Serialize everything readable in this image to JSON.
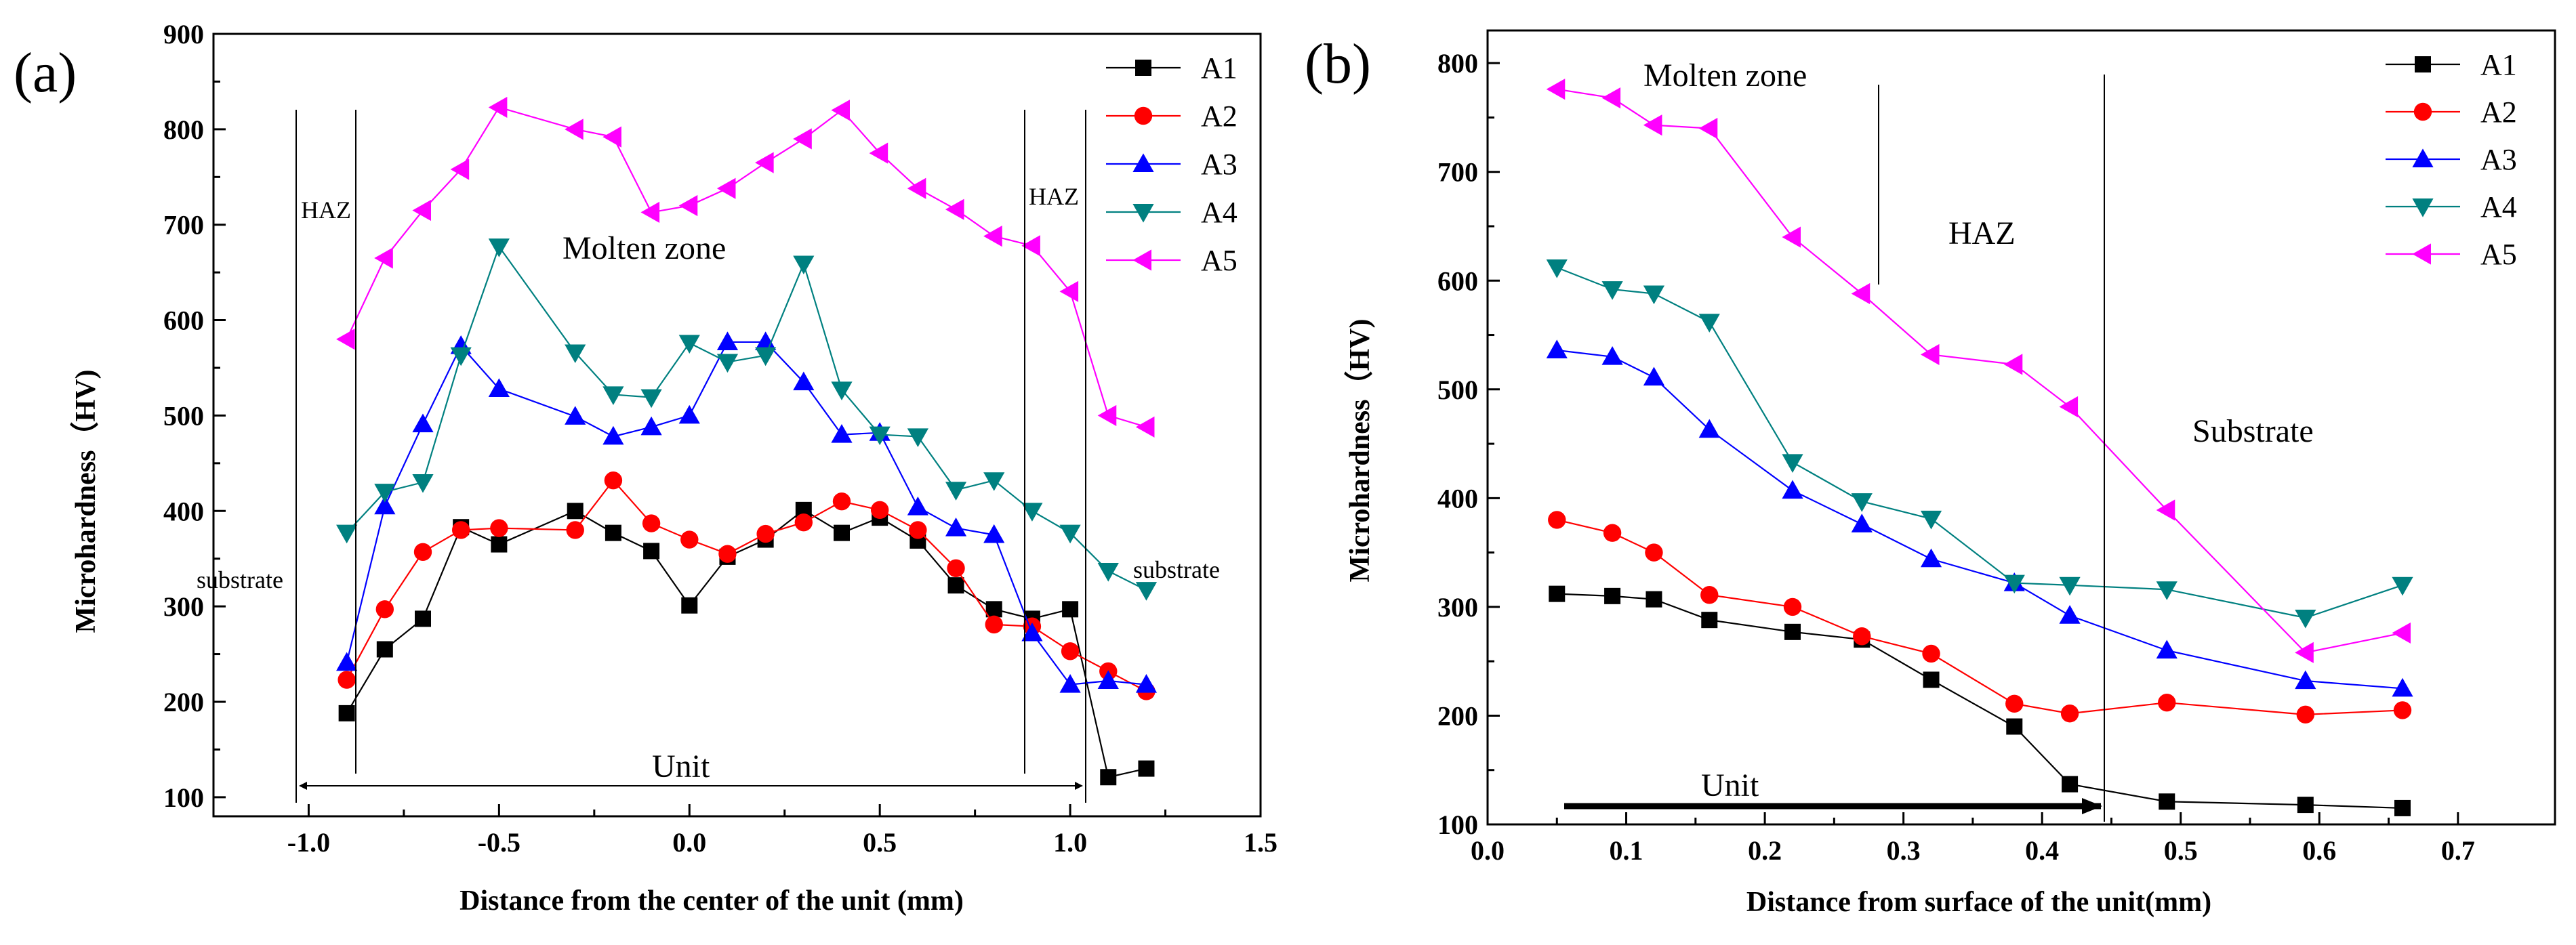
{
  "chart_data": [
    {
      "type": "line",
      "panel_label": "(a)",
      "xlabel": "Distance from the center of the unit (mm)",
      "ylabel": "Microhardness（HV)",
      "xlim": [
        -1.25,
        1.5
      ],
      "ylim": [
        80,
        900
      ],
      "xticks": [
        -1.0,
        -0.5,
        0.0,
        0.5,
        1.0,
        1.5
      ],
      "xtick_labels": [
        "-1.0",
        "-0.5",
        "0.0",
        "0.5",
        "1.0",
        "1.5"
      ],
      "yticks": [
        100,
        200,
        300,
        400,
        500,
        600,
        700,
        800,
        900
      ],
      "ytick_labels": [
        "100",
        "200",
        "300",
        "400",
        "500",
        "600",
        "700",
        "800",
        "900"
      ],
      "series": [
        {
          "name": "A1",
          "color": "#000000",
          "marker": "square",
          "x": [
            -0.9,
            -0.8,
            -0.7,
            -0.6,
            -0.5,
            -0.3,
            -0.2,
            -0.1,
            0.0,
            0.1,
            0.2,
            0.3,
            0.4,
            0.5,
            0.6,
            0.7,
            0.8,
            0.9,
            1.0,
            1.1,
            1.2
          ],
          "y": [
            188,
            255,
            287,
            383,
            365,
            400,
            377,
            358,
            301,
            352,
            370,
            401,
            377,
            393,
            369,
            322,
            297,
            287,
            297,
            121,
            130
          ]
        },
        {
          "name": "A2",
          "color": "#ff0000",
          "marker": "circle",
          "x": [
            -0.9,
            -0.8,
            -0.7,
            -0.6,
            -0.5,
            -0.3,
            -0.2,
            -0.1,
            0.0,
            0.1,
            0.2,
            0.3,
            0.4,
            0.5,
            0.6,
            0.7,
            0.8,
            0.9,
            1.0,
            1.1,
            1.2
          ],
          "y": [
            223,
            297,
            357,
            380,
            382,
            380,
            432,
            387,
            370,
            355,
            376,
            388,
            410,
            401,
            380,
            340,
            281,
            279,
            253,
            232,
            211
          ]
        },
        {
          "name": "A3",
          "color": "#0000ff",
          "marker": "triangle-up",
          "x": [
            -0.9,
            -0.8,
            -0.7,
            -0.6,
            -0.5,
            -0.3,
            -0.2,
            -0.1,
            0.0,
            0.1,
            0.2,
            0.3,
            0.4,
            0.5,
            0.6,
            0.7,
            0.8,
            0.9,
            1.0,
            1.1,
            1.2
          ],
          "y": [
            241,
            405,
            491,
            573,
            528,
            499,
            478,
            488,
            500,
            577,
            577,
            535,
            480,
            482,
            404,
            382,
            375,
            272,
            218,
            222,
            218
          ]
        },
        {
          "name": "A4",
          "color": "#008080",
          "marker": "triangle-down",
          "x": [
            -0.9,
            -0.8,
            -0.7,
            -0.6,
            -0.5,
            -0.3,
            -0.2,
            -0.1,
            0.0,
            0.1,
            0.2,
            0.3,
            0.4,
            0.5,
            0.6,
            0.7,
            0.8,
            0.9,
            1.0,
            1.1,
            1.2
          ],
          "y": [
            377,
            420,
            430,
            563,
            677,
            566,
            522,
            519,
            576,
            556,
            563,
            659,
            527,
            480,
            478,
            422,
            432,
            400,
            377,
            337,
            317
          ]
        },
        {
          "name": "A5",
          "color": "#ff00ff",
          "marker": "triangle-left",
          "x": [
            -0.9,
            -0.8,
            -0.7,
            -0.6,
            -0.5,
            -0.3,
            -0.2,
            -0.1,
            0.0,
            0.1,
            0.2,
            0.3,
            0.4,
            0.5,
            0.6,
            0.7,
            0.8,
            0.9,
            1.0,
            1.1,
            1.2
          ],
          "y": [
            580,
            665,
            715,
            758,
            823,
            800,
            792,
            713,
            720,
            738,
            765,
            790,
            820,
            775,
            738,
            716,
            688,
            678,
            630,
            500,
            488
          ]
        }
      ],
      "annotations": {
        "haz_left": "HAZ",
        "haz_right": "HAZ",
        "molten_zone": "Molten zone",
        "substrate_left": "substrate",
        "substrate_right": "substrate",
        "unit": "Unit"
      },
      "legend_position": "top-right"
    },
    {
      "type": "line",
      "panel_label": "(b)",
      "xlabel": "Distance from surface of the unit(mm)",
      "ylabel": "Microhardness（HV)",
      "xlim": [
        0.0,
        0.77
      ],
      "ylim": [
        100,
        830
      ],
      "xticks": [
        0.0,
        0.1,
        0.2,
        0.3,
        0.4,
        0.5,
        0.6,
        0.7
      ],
      "xtick_labels": [
        "0.0",
        "0.1",
        "0.2",
        "0.3",
        "0.4",
        "0.5",
        "0.6",
        "0.7"
      ],
      "yticks": [
        100,
        200,
        300,
        400,
        500,
        600,
        700,
        800
      ],
      "ytick_labels": [
        "100",
        "200",
        "300",
        "400",
        "500",
        "600",
        "700",
        "800"
      ],
      "series": [
        {
          "name": "A1",
          "color": "#000000",
          "marker": "square",
          "x": [
            0.05,
            0.09,
            0.12,
            0.16,
            0.22,
            0.27,
            0.32,
            0.38,
            0.42,
            0.49,
            0.59,
            0.66
          ],
          "y": [
            312,
            310,
            307,
            288,
            277,
            270,
            233,
            190,
            137,
            121,
            118,
            115
          ]
        },
        {
          "name": "A2",
          "color": "#ff0000",
          "marker": "circle",
          "x": [
            0.05,
            0.09,
            0.12,
            0.16,
            0.22,
            0.27,
            0.32,
            0.38,
            0.42,
            0.49,
            0.59,
            0.66
          ],
          "y": [
            380,
            368,
            350,
            311,
            300,
            273,
            257,
            211,
            202,
            212,
            201,
            205
          ]
        },
        {
          "name": "A3",
          "color": "#0000ff",
          "marker": "triangle-up",
          "x": [
            0.05,
            0.09,
            0.12,
            0.16,
            0.22,
            0.27,
            0.32,
            0.38,
            0.42,
            0.49,
            0.59,
            0.66
          ],
          "y": [
            536,
            530,
            511,
            463,
            407,
            376,
            344,
            322,
            292,
            260,
            232,
            225
          ]
        },
        {
          "name": "A4",
          "color": "#008080",
          "marker": "triangle-down",
          "x": [
            0.05,
            0.09,
            0.12,
            0.16,
            0.22,
            0.27,
            0.32,
            0.38,
            0.42,
            0.49,
            0.59,
            0.66
          ],
          "y": [
            612,
            592,
            588,
            562,
            433,
            397,
            381,
            322,
            320,
            316,
            290,
            320
          ]
        },
        {
          "name": "A5",
          "color": "#ff00ff",
          "marker": "triangle-left",
          "x": [
            0.05,
            0.09,
            0.12,
            0.16,
            0.22,
            0.27,
            0.32,
            0.38,
            0.42,
            0.49,
            0.59,
            0.66
          ],
          "y": [
            776,
            768,
            743,
            740,
            640,
            588,
            532,
            523,
            484,
            389,
            258,
            276
          ]
        }
      ],
      "annotations": {
        "molten_zone": "Molten zone",
        "haz": "HAZ",
        "substrate": "Substrate",
        "unit": "Unit"
      },
      "legend_position": "top-right"
    }
  ]
}
